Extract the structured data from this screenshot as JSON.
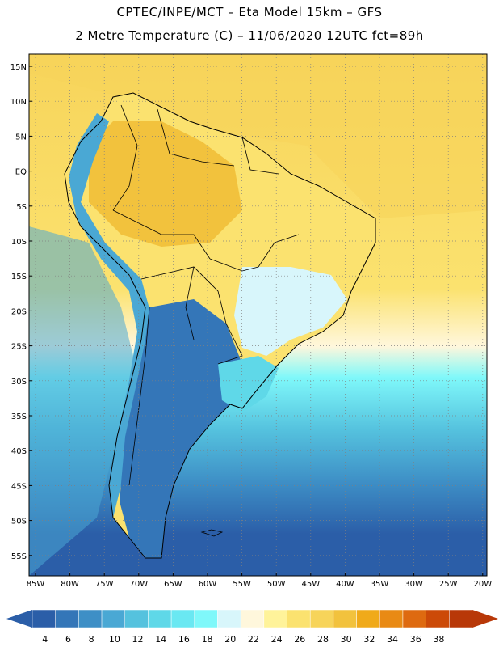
{
  "title_line1": "CPTEC/INPE/MCT –  Eta Model 15km – GFS",
  "title_line2": "2 Metre Temperature (C) – 11/06/2020 12UTC fct=89h",
  "lat_labels": [
    "15N",
    "10N",
    "5N",
    "EQ",
    "5S",
    "10S",
    "15S",
    "20S",
    "25S",
    "30S",
    "35S",
    "40S",
    "45S",
    "50S",
    "55S"
  ],
  "lon_labels": [
    "85W",
    "80W",
    "75W",
    "70W",
    "65W",
    "60W",
    "55W",
    "50W",
    "45W",
    "40W",
    "35W",
    "30W",
    "25W",
    "20W"
  ],
  "colorbar": {
    "labels": [
      "4",
      "6",
      "8",
      "10",
      "12",
      "14",
      "16",
      "18",
      "20",
      "22",
      "24",
      "26",
      "28",
      "30",
      "32",
      "34",
      "36",
      "38"
    ],
    "colors": [
      "#2b5ea8",
      "#3476b8",
      "#3e8fc6",
      "#4aa8d4",
      "#55c2de",
      "#5fd8e8",
      "#6ae8f2",
      "#7ff8fa",
      "#d8f6fb",
      "#fff7dc",
      "#fff39a",
      "#fbe26f",
      "#f7d45a",
      "#f2c23d",
      "#f0aa1a",
      "#e98a14",
      "#de6a10",
      "#cc4a08",
      "#b83808"
    ],
    "low_color": "#2b5ea8",
    "high_color": "#b83808"
  },
  "map": {
    "ocean_north_color": "#f7d45a",
    "ocean_mid_color": "#6ae8f2",
    "ocean_south_color": "#2b5ea8",
    "land_north_color": "#f2c23d",
    "land_central_color": "#fbe26f",
    "andes_color": "#4aa8d4",
    "patagonia_color": "#2b5ea8",
    "grid_color": "#808080",
    "border_color": "#000000"
  }
}
